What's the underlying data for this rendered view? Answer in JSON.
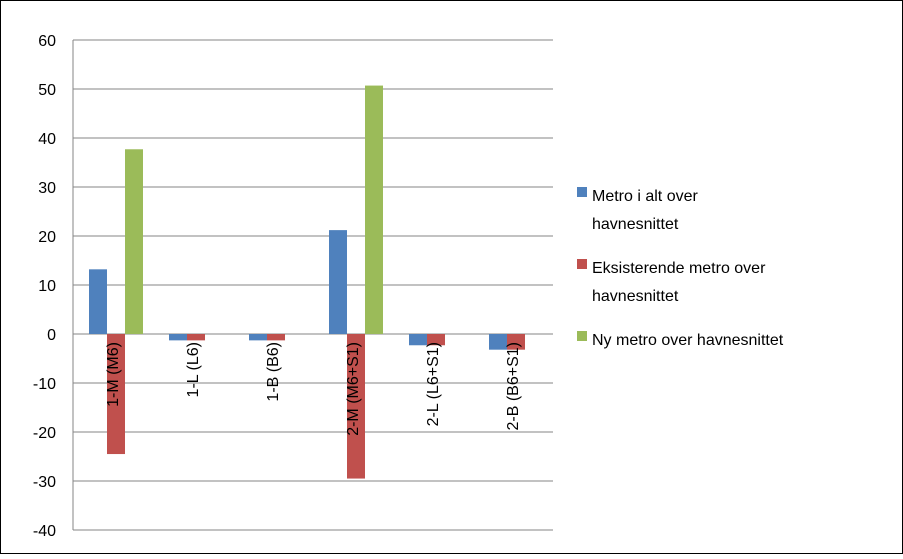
{
  "chart_data": {
    "type": "bar",
    "title": "",
    "xlabel": "",
    "ylabel": "",
    "ylim": [
      -40,
      60
    ],
    "yticks": [
      60,
      50,
      40,
      30,
      20,
      10,
      0,
      -10,
      -20,
      -30,
      -40
    ],
    "grid": true,
    "legend_position": "right",
    "categories": [
      "1-M (M6)",
      "1-L (L6)",
      "1-B (B6)",
      "2-M (M6+S1)",
      "2-L (L6+S1)",
      "2-B (B6+S1)"
    ],
    "series": [
      {
        "name": "Metro i alt over havnesnittet",
        "name_lines": [
          "Metro i alt over",
          "havnesnittet"
        ],
        "color": "#4f81bd",
        "values": [
          13.2,
          -1.3,
          -1.3,
          21.2,
          -2.3,
          -3.2
        ]
      },
      {
        "name": "Eksisterende metro over havnesnittet",
        "name_lines": [
          "Eksisterende metro over",
          "havnesnittet"
        ],
        "color": "#c0504d",
        "values": [
          -24.5,
          -1.3,
          -1.3,
          -29.5,
          -2.3,
          -3.2
        ]
      },
      {
        "name": "Ny metro over havnesnittet",
        "name_lines": [
          "Ny metro over havnesnittet"
        ],
        "color": "#9bbb59",
        "values": [
          37.7,
          0,
          0,
          50.7,
          0,
          0
        ]
      }
    ]
  }
}
